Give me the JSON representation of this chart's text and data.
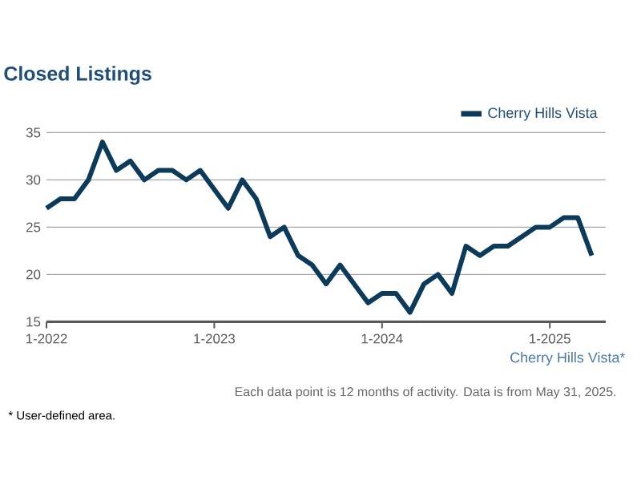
{
  "chart_data": {
    "type": "line",
    "title": "Closed Listings",
    "xlabel": "Cherry Hills Vista*",
    "x": [
      "2022-01",
      "2022-02",
      "2022-03",
      "2022-04",
      "2022-05",
      "2022-06",
      "2022-07",
      "2022-08",
      "2022-09",
      "2022-10",
      "2022-11",
      "2022-12",
      "2023-01",
      "2023-02",
      "2023-03",
      "2023-04",
      "2023-05",
      "2023-06",
      "2023-07",
      "2023-08",
      "2023-09",
      "2023-10",
      "2023-11",
      "2023-12",
      "2024-01",
      "2024-02",
      "2024-03",
      "2024-04",
      "2024-05",
      "2024-06",
      "2024-07",
      "2024-08",
      "2024-09",
      "2024-10",
      "2024-11",
      "2024-12",
      "2025-01",
      "2025-02",
      "2025-03",
      "2025-04"
    ],
    "series": [
      {
        "name": "Cherry Hills Vista",
        "color": "#0c3a5b",
        "values": [
          27,
          28,
          28,
          30,
          34,
          31,
          32,
          30,
          31,
          31,
          30,
          31,
          29,
          27,
          30,
          28,
          24,
          25,
          22,
          21,
          19,
          21,
          19,
          17,
          18,
          18,
          16,
          19,
          20,
          18,
          23,
          22,
          23,
          23,
          24,
          25,
          25,
          26,
          26,
          22
        ]
      }
    ],
    "xlim": [
      "2022-01",
      "2025-05"
    ],
    "xticks": [
      {
        "value": "2022-01",
        "label": "1-2022"
      },
      {
        "value": "2023-01",
        "label": "1-2023"
      },
      {
        "value": "2024-01",
        "label": "1-2024"
      },
      {
        "value": "2025-01",
        "label": "1-2025"
      }
    ],
    "ylim": [
      15,
      35
    ],
    "yticks": [
      15,
      20,
      25,
      30,
      35
    ],
    "grid": "y",
    "legend": "top right",
    "annotations": [
      "Each data point is 12 months of activity. Data is from May 31, 2025.",
      "* User-defined area."
    ]
  }
}
